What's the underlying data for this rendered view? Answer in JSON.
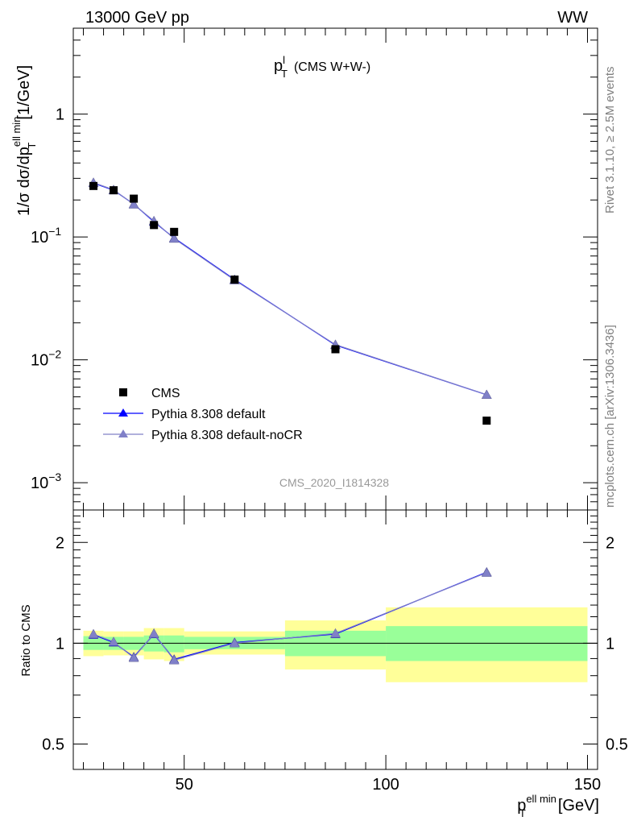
{
  "header": {
    "left": "13000 GeV pp",
    "right": "WW"
  },
  "title": {
    "main": "p",
    "sup": "l",
    "sub": "T",
    "suffix": "(CMS W+W-)"
  },
  "ylabel_main": {
    "prefix": "1/σ dσ/dp",
    "sup": "ell min",
    "sub": "T",
    "unit": "[1/GeV]"
  },
  "ylabel_ratio": "Ratio to CMS",
  "xlabel": {
    "prefix": "p",
    "sup": "ell min",
    "sub": "T",
    "unit": "[GeV]"
  },
  "side_texts": {
    "rivet": "Rivet 3.1.10, ≥ 2.5M events",
    "mcplots": "mcplots.cern.ch [arXiv:1306.3436]"
  },
  "analysis_id": "CMS_2020_I1814328",
  "legend": [
    {
      "label": "CMS",
      "marker": "square",
      "color": "#000000"
    },
    {
      "label": "Pythia 8.308 default",
      "marker": "triangle",
      "color": "#0000ff"
    },
    {
      "label": "Pythia 8.308 default-noCR",
      "marker": "triangle",
      "color": "#7a7acc"
    }
  ],
  "colors": {
    "band_inner": "#99ff99",
    "band_outer": "#ffff99",
    "default": "#0000ff",
    "noCR": "#8080c8",
    "cms": "#000000"
  },
  "chart_data": [
    {
      "type": "scatter",
      "panel": "main",
      "title": "p_T^l (CMS W+W-)",
      "xlabel": "p_T^{ell min} [GeV]",
      "ylabel": "1/σ dσ/dp_T^{ell min} [1/GeV]",
      "yscale": "log",
      "xlim": [
        22.5,
        152.5
      ],
      "ylim": [
        0.0006,
        5
      ],
      "y_ticks": [
        {
          "value": 0.001,
          "label": "10",
          "sup": "−3"
        },
        {
          "value": 0.01,
          "label": "10",
          "sup": "−2"
        },
        {
          "value": 0.1,
          "label": "10",
          "sup": "−1"
        },
        {
          "value": 1,
          "label": "1",
          "sup": ""
        }
      ],
      "x_ticks": [
        50,
        100,
        150
      ],
      "x_edges": [
        25,
        30,
        35,
        40,
        45,
        50,
        75,
        100,
        150
      ],
      "series": [
        {
          "name": "CMS",
          "x": [
            27.5,
            32.5,
            37.5,
            42.5,
            47.5,
            62.5,
            87.5,
            125
          ],
          "y": [
            0.26,
            0.24,
            0.205,
            0.125,
            0.11,
            0.045,
            0.0122,
            0.0032
          ]
        },
        {
          "name": "Pythia 8.308 default",
          "x": [
            27.5,
            32.5,
            37.5,
            42.5,
            47.5,
            62.5,
            87.5,
            125
          ],
          "y": [
            0.275,
            0.24,
            0.185,
            0.133,
            0.098,
            0.045,
            0.0132,
            0.0052
          ]
        },
        {
          "name": "Pythia 8.308 default-noCR",
          "x": [
            27.5,
            32.5,
            37.5,
            42.5,
            47.5,
            62.5,
            87.5,
            125
          ],
          "y": [
            0.277,
            0.242,
            0.184,
            0.135,
            0.097,
            0.0445,
            0.0133,
            0.0052
          ]
        }
      ]
    },
    {
      "type": "line",
      "panel": "ratio",
      "ylabel": "Ratio to CMS",
      "yscale": "log",
      "xlim": [
        22.5,
        152.5
      ],
      "ylim": [
        0.42,
        2.5
      ],
      "y_ticks": [
        {
          "value": 0.5,
          "label": "0.5"
        },
        {
          "value": 1,
          "label": "1"
        },
        {
          "value": 2,
          "label": "2"
        }
      ],
      "bands": [
        {
          "x0": 25,
          "x1": 30,
          "inner": [
            0.955,
            1.05
          ],
          "outer": [
            0.915,
            1.09
          ]
        },
        {
          "x0": 30,
          "x1": 35,
          "inner": [
            0.955,
            1.045
          ],
          "outer": [
            0.92,
            1.085
          ]
        },
        {
          "x0": 35,
          "x1": 40,
          "inner": [
            0.955,
            1.045
          ],
          "outer": [
            0.92,
            1.085
          ]
        },
        {
          "x0": 40,
          "x1": 45,
          "inner": [
            0.945,
            1.055
          ],
          "outer": [
            0.895,
            1.11
          ]
        },
        {
          "x0": 45,
          "x1": 50,
          "inner": [
            0.94,
            1.055
          ],
          "outer": [
            0.885,
            1.11
          ]
        },
        {
          "x0": 50,
          "x1": 75,
          "inner": [
            0.96,
            1.045
          ],
          "outer": [
            0.925,
            1.085
          ]
        },
        {
          "x0": 75,
          "x1": 100,
          "inner": [
            0.915,
            1.09
          ],
          "outer": [
            0.835,
            1.17
          ]
        },
        {
          "x0": 100,
          "x1": 150,
          "inner": [
            0.885,
            1.125
          ],
          "outer": [
            0.765,
            1.28
          ]
        }
      ],
      "series": [
        {
          "name": "Pythia 8.308 default",
          "x": [
            27.5,
            32.5,
            37.5,
            42.5,
            47.5,
            62.5,
            87.5,
            125
          ],
          "y": [
            1.06,
            1.005,
            0.91,
            1.065,
            0.895,
            1.005,
            1.065,
            1.63
          ]
        },
        {
          "name": "Pythia 8.308 default-noCR",
          "x": [
            27.5,
            32.5,
            37.5,
            42.5,
            47.5,
            62.5,
            87.5,
            125
          ],
          "y": [
            1.065,
            1.01,
            0.905,
            1.07,
            0.89,
            1.0,
            1.07,
            1.625
          ]
        }
      ]
    }
  ]
}
